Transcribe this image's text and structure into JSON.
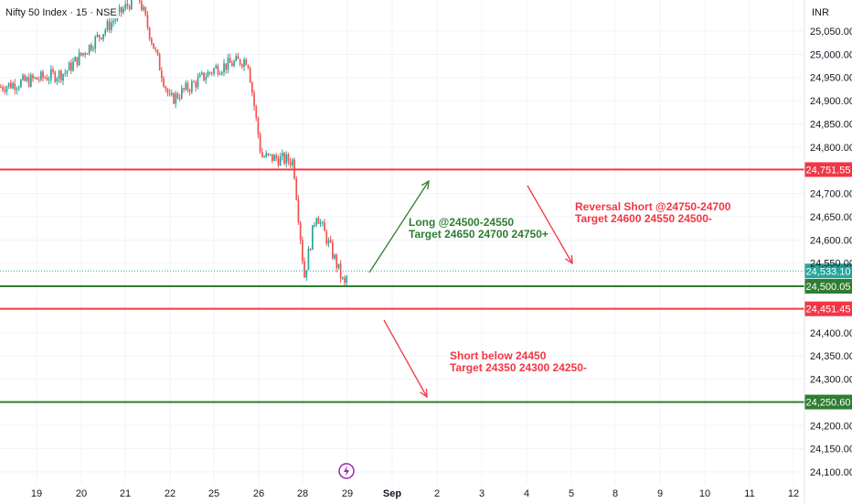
{
  "header": {
    "title": "Nifty 50 Index · 15 · NSE",
    "currency": "INR"
  },
  "chart_data": {
    "type": "candlestick",
    "title": "Nifty 50 Index · 15 · NSE",
    "ylim": [
      24080,
      25120
    ],
    "y_ticks": [
      "25,050.00",
      "25,000.00",
      "24,950.00",
      "24,900.00",
      "24,850.00",
      "24,800.00",
      "24,700.00",
      "24,650.00",
      "24,600.00",
      "24,550.00",
      "24,400.00",
      "24,350.00",
      "24,300.00",
      "24,200.00",
      "24,150.00",
      "24,100.00"
    ],
    "y_tick_values": [
      25050,
      25000,
      24950,
      24900,
      24850,
      24800,
      24700,
      24650,
      24600,
      24550,
      24400,
      24350,
      24300,
      24200,
      24150,
      24100
    ],
    "x_ticks": [
      "19",
      "20",
      "21",
      "22",
      "25",
      "26",
      "28",
      "29",
      "Sep",
      "2",
      "3",
      "4",
      "5",
      "8",
      "9",
      "10",
      "11",
      "12"
    ],
    "levels": [
      {
        "value": 24751.55,
        "label": "24,751.55",
        "color": "#f23645"
      },
      {
        "value": 24500.05,
        "label": "24,500.05",
        "color": "#2e7d32"
      },
      {
        "value": 24451.45,
        "label": "24,451.45",
        "color": "#f23645"
      },
      {
        "value": 24250.6,
        "label": "24,250.60",
        "color": "#2e7d32"
      }
    ],
    "last_price": {
      "value": 24533.1,
      "label": "24,533.10",
      "color": "#26a69a"
    },
    "price_path": [
      {
        "day": "19",
        "price": 24930
      },
      {
        "day": "20",
        "price": 24960
      },
      {
        "day": "21",
        "price": 25130
      },
      {
        "day": "22",
        "price": 24900
      },
      {
        "day": "25",
        "price": 24970
      },
      {
        "day": "26",
        "price": 24990
      },
      {
        "day": "26",
        "price": 24780
      },
      {
        "day": "28",
        "price": 24770
      },
      {
        "day": "28",
        "price": 24520
      },
      {
        "day": "28",
        "price": 24660
      },
      {
        "day": "29",
        "price": 24560
      },
      {
        "day": "29",
        "price": 24500
      },
      {
        "day": "29",
        "price": 24533
      }
    ],
    "annotations": [
      {
        "lines": [
          "Long @24500-24550",
          "Target 24650 24700 24750+"
        ],
        "color": "#2e7d32"
      },
      {
        "lines": [
          "Reversal Short @24750-24700",
          "Target 24600 24550 24500-"
        ],
        "color": "#f23645"
      },
      {
        "lines": [
          "Short below 24450",
          "Target 24350 24300 24250-"
        ],
        "color": "#f23645"
      }
    ],
    "colors": {
      "up": "#26a69a",
      "down": "#ef5350"
    }
  }
}
